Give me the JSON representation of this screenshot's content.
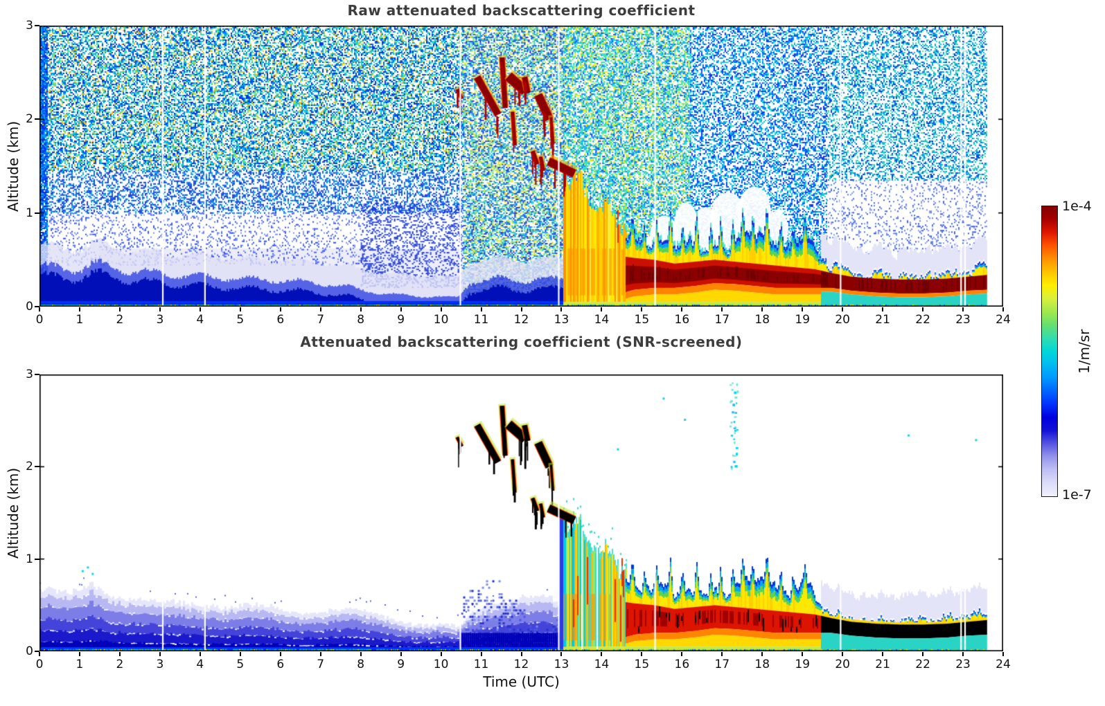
{
  "panels": [
    {
      "title": "Raw attenuated backscattering coefficient",
      "ylabel": "Altitude (km)"
    },
    {
      "title": "Attenuated backscattering coefficient (SNR-screened)",
      "ylabel": "Altitude (km)",
      "xlabel": "Time (UTC)"
    }
  ],
  "colorbar": {
    "top_label": "1e-4",
    "bottom_label": "1e-7",
    "unit": "1/m/sr"
  },
  "chart_data": {
    "type": "heatmap",
    "panels": [
      {
        "name": "raw",
        "title": "Raw attenuated backscattering coefficient"
      },
      {
        "name": "snr_screened",
        "title": "Attenuated backscattering coefficient (SNR-screened)"
      }
    ],
    "x": {
      "label": "Time (UTC)",
      "range": [
        0,
        24
      ],
      "ticks": [
        0,
        1,
        2,
        3,
        4,
        5,
        6,
        7,
        8,
        9,
        10,
        11,
        12,
        13,
        14,
        15,
        16,
        17,
        18,
        19,
        20,
        21,
        22,
        23,
        24
      ]
    },
    "y": {
      "label": "Altitude (km)",
      "range": [
        0,
        3
      ],
      "ticks": [
        0,
        1,
        2,
        3
      ]
    },
    "value": {
      "unit": "1/m/sr",
      "scale": "log",
      "min": 1e-07,
      "max": 0.0001
    },
    "colormap_stops": [
      "#f0f0fd",
      "#dcdcf9",
      "#c0c0f4",
      "#9494ec",
      "#5555e2",
      "#1111d6",
      "#0000e0",
      "#0033ff",
      "#0066ff",
      "#0099ff",
      "#00bbf0",
      "#00d8d8",
      "#33dcb0",
      "#66e070",
      "#a0e84c",
      "#d8f03c",
      "#ffee00",
      "#ffc400",
      "#ff9100",
      "#ff5500",
      "#e01800",
      "#a80000",
      "#800000"
    ],
    "data_end_utc": 23.6,
    "gaps_utc": [
      3.07,
      4.12,
      10.48,
      12.93,
      15.33,
      19.95,
      22.95,
      23.05
    ],
    "rain_onset_utc": 13.05,
    "rain_curtain": {
      "t": [
        13.05,
        14.6
      ],
      "top_km": [
        1.45,
        0.85
      ]
    },
    "boundary_layer_top_km": [
      [
        13.3,
        1.45
      ],
      [
        13.6,
        1.3
      ],
      [
        14.0,
        1.15
      ],
      [
        14.3,
        0.95
      ],
      [
        14.6,
        0.78
      ],
      [
        15.0,
        0.65
      ],
      [
        15.4,
        0.72
      ],
      [
        15.8,
        0.6
      ],
      [
        16.2,
        0.72
      ],
      [
        16.5,
        0.58
      ],
      [
        16.8,
        0.66
      ],
      [
        17.1,
        0.62
      ],
      [
        17.4,
        0.7
      ],
      [
        17.7,
        0.78
      ],
      [
        18.0,
        0.82
      ],
      [
        18.2,
        0.68
      ],
      [
        18.5,
        0.62
      ],
      [
        18.8,
        0.7
      ],
      [
        19.1,
        0.72
      ],
      [
        19.35,
        0.55
      ],
      [
        19.6,
        0.45
      ],
      [
        19.9,
        0.4
      ],
      [
        20.3,
        0.35
      ],
      [
        20.8,
        0.32
      ],
      [
        21.3,
        0.32
      ],
      [
        21.8,
        0.33
      ],
      [
        22.3,
        0.35
      ],
      [
        22.8,
        0.37
      ],
      [
        23.2,
        0.4
      ],
      [
        23.6,
        0.42
      ]
    ],
    "bl_spikes": [
      [
        14.75,
        1.0
      ],
      [
        15.05,
        0.88
      ],
      [
        15.35,
        0.95
      ],
      [
        15.7,
        1.02
      ],
      [
        16.0,
        0.88
      ],
      [
        16.35,
        1.0
      ],
      [
        16.7,
        0.85
      ],
      [
        16.95,
        0.95
      ],
      [
        17.25,
        0.9
      ],
      [
        17.5,
        1.02
      ],
      [
        17.75,
        0.95
      ],
      [
        18.1,
        1.08
      ],
      [
        18.45,
        0.9
      ],
      [
        18.75,
        0.85
      ],
      [
        19.05,
        0.95
      ]
    ],
    "red_core_band_km": [
      [
        13.8,
        0.1,
        0.52
      ],
      [
        14.3,
        0.12,
        0.55
      ],
      [
        14.8,
        0.18,
        0.52
      ],
      [
        15.3,
        0.2,
        0.5
      ],
      [
        15.8,
        0.2,
        0.46
      ],
      [
        16.3,
        0.22,
        0.48
      ],
      [
        16.8,
        0.25,
        0.5
      ],
      [
        17.3,
        0.24,
        0.48
      ],
      [
        17.8,
        0.22,
        0.46
      ],
      [
        18.3,
        0.2,
        0.44
      ],
      [
        18.8,
        0.2,
        0.42
      ],
      [
        19.3,
        0.2,
        0.4
      ],
      [
        19.7,
        0.2,
        0.36
      ],
      [
        20.2,
        0.17,
        0.32
      ],
      [
        20.8,
        0.15,
        0.3
      ],
      [
        21.4,
        0.14,
        0.29
      ],
      [
        22.0,
        0.14,
        0.29
      ],
      [
        22.6,
        0.15,
        0.3
      ],
      [
        23.1,
        0.17,
        0.32
      ],
      [
        23.6,
        0.18,
        0.34
      ]
    ],
    "aerosol_top_raw_km": [
      [
        0,
        0.44
      ],
      [
        0.8,
        0.38
      ],
      [
        1.3,
        0.46
      ],
      [
        2.0,
        0.4
      ],
      [
        3.0,
        0.35
      ],
      [
        4.0,
        0.32
      ],
      [
        5.0,
        0.3
      ],
      [
        6.0,
        0.28
      ],
      [
        7.0,
        0.25
      ],
      [
        7.8,
        0.2
      ],
      [
        8.5,
        0.14
      ],
      [
        9.5,
        0.11
      ],
      [
        10.4,
        0.1
      ],
      [
        10.7,
        0.26
      ],
      [
        11.5,
        0.3
      ],
      [
        12.2,
        0.28
      ],
      [
        12.9,
        0.3
      ],
      [
        13.05,
        0.3
      ]
    ],
    "aerosol_top_screened_km": [
      [
        0,
        0.68
      ],
      [
        0.7,
        0.6
      ],
      [
        1.25,
        0.73
      ],
      [
        1.7,
        0.64
      ],
      [
        2.2,
        0.58
      ],
      [
        3.0,
        0.52
      ],
      [
        4.0,
        0.52
      ],
      [
        5.0,
        0.48
      ],
      [
        6.0,
        0.45
      ],
      [
        7.0,
        0.44
      ],
      [
        8.0,
        0.42
      ],
      [
        8.7,
        0.37
      ],
      [
        9.4,
        0.3
      ],
      [
        10.0,
        0.27
      ],
      [
        10.45,
        0.24
      ],
      [
        10.7,
        0.4
      ],
      [
        11.2,
        0.52
      ],
      [
        11.8,
        0.58
      ],
      [
        12.3,
        0.6
      ],
      [
        12.7,
        0.55
      ],
      [
        13.05,
        0.48
      ]
    ],
    "cloud_streaks": [
      [
        10.4,
        2.32,
        10.52,
        2.22,
        4
      ],
      [
        10.9,
        2.45,
        11.42,
        2.05,
        9
      ],
      [
        11.52,
        2.66,
        11.6,
        2.12,
        6
      ],
      [
        11.68,
        2.46,
        12.1,
        2.3,
        13
      ],
      [
        11.78,
        2.08,
        11.84,
        1.72,
        4
      ],
      [
        12.08,
        2.45,
        12.16,
        2.28,
        7
      ],
      [
        12.42,
        2.26,
        12.7,
        2.0,
        11
      ],
      [
        12.74,
        2.02,
        12.79,
        1.74,
        3
      ],
      [
        12.28,
        1.66,
        12.4,
        1.52,
        5
      ],
      [
        12.48,
        1.6,
        12.55,
        1.45,
        4
      ],
      [
        12.68,
        1.55,
        13.32,
        1.42,
        11
      ]
    ],
    "noise_regions_raw": [
      {
        "t": [
          0,
          10.55
        ],
        "a": [
          1.45,
          3
        ],
        "d": 0.58,
        "c": [
          "#0040ee",
          "#0057ff",
          "#0078ff",
          "#0099ff",
          "#00bbee",
          "#23dcc8",
          "#0030dd",
          "#45dca8",
          "#9ae455",
          "#ffbf00"
        ]
      },
      {
        "t": [
          0,
          10.55
        ],
        "a": [
          1.0,
          1.45
        ],
        "d": 0.4,
        "c": [
          "#0038e8",
          "#0057ff",
          "#0078ff",
          "#00a5f0",
          "#1133dd"
        ]
      },
      {
        "t": [
          0,
          8
        ],
        "a": [
          0.45,
          1.0
        ],
        "d": 0.16,
        "c": [
          "#2a48ee",
          "#4a68ff",
          "#7a90f4"
        ]
      },
      {
        "t": [
          8,
          10.55
        ],
        "a": [
          0.2,
          1.1
        ],
        "d": 0.3,
        "c": [
          "#1535e0",
          "#3053f0",
          "#0f2cd0"
        ]
      },
      {
        "t": [
          10.55,
          13.05
        ],
        "a": [
          0,
          3
        ],
        "d": 0.62,
        "c": [
          "#0040ee",
          "#0066ff",
          "#0099ff",
          "#00c2e8",
          "#2adcc0",
          "#66dd77",
          "#b4e844",
          "#ffde00",
          "#1128d8"
        ]
      },
      {
        "t": [
          13.05,
          16.2
        ],
        "a": [
          0.7,
          3
        ],
        "d": 0.62,
        "c": [
          "#00c6dd",
          "#27dcb4",
          "#5ad886",
          "#0077ff",
          "#0044ee",
          "#a8e84a",
          "#ffe400",
          "#0099ff",
          "#27dcb4"
        ]
      },
      {
        "t": [
          16.2,
          19.6
        ],
        "a": [
          0.5,
          3
        ],
        "d": 0.47,
        "c": [
          "#0040ee",
          "#0066ff",
          "#0095ff",
          "#00c2e8",
          "#1133dd",
          "#2adcc0"
        ]
      },
      {
        "t": [
          19.6,
          23.6
        ],
        "a": [
          1.35,
          3
        ],
        "d": 0.42,
        "c": [
          "#00b4e6",
          "#22d4c6",
          "#0066ff",
          "#0095ff",
          "#0040ee",
          "#55dca8"
        ]
      },
      {
        "t": [
          19.6,
          23.6
        ],
        "a": [
          0.5,
          1.35
        ],
        "d": 0.15,
        "c": [
          "#3355ee",
          "#5577ff",
          "#7d94f6"
        ]
      },
      {
        "t": [
          0,
          0.18
        ],
        "a": [
          0,
          3
        ],
        "d": 0.85,
        "c": [
          "#0030dd",
          "#0057ff",
          "#00a5f0"
        ]
      }
    ],
    "signal_holes_raw": [
      [
        15.55,
        0.75,
        0.35,
        0.22
      ],
      [
        16.1,
        0.85,
        0.3,
        0.26
      ],
      [
        16.6,
        0.78,
        0.42,
        0.28
      ],
      [
        17.15,
        0.92,
        0.45,
        0.3
      ],
      [
        17.8,
        1.0,
        0.42,
        0.28
      ],
      [
        18.35,
        0.82,
        0.3,
        0.2
      ],
      [
        15.2,
        0.6,
        0.25,
        0.15
      ]
    ],
    "high_dots_screened": {
      "t": [
        17.18,
        17.38
      ],
      "alt_km": [
        1.95,
        3.0
      ]
    },
    "isolated_dots_screened": [
      [
        14.38,
        2.2
      ],
      [
        15.52,
        2.75
      ],
      [
        16.05,
        2.52
      ],
      [
        21.62,
        2.35
      ],
      [
        23.3,
        2.3
      ],
      [
        1.05,
        0.88
      ],
      [
        1.18,
        0.92
      ],
      [
        1.3,
        0.85
      ]
    ]
  }
}
